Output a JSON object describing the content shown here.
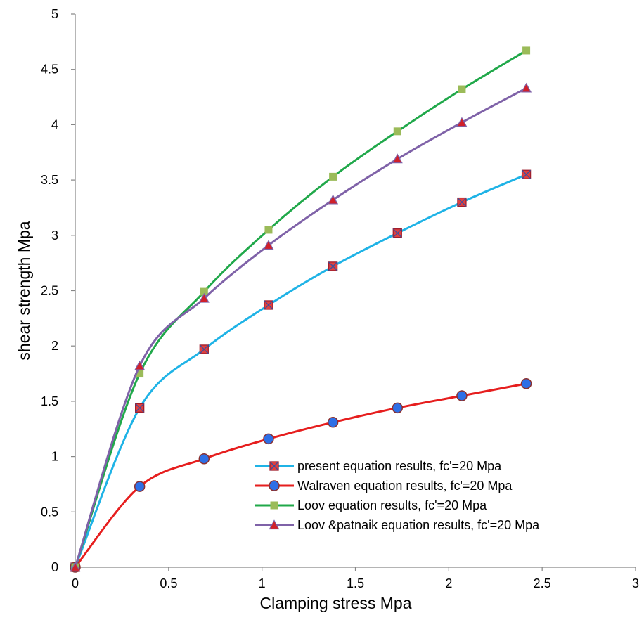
{
  "chart_data": {
    "type": "line",
    "xlabel": "Clamping stress   Mpa",
    "ylabel": "shear strength   Mpa",
    "xlim": [
      0,
      3
    ],
    "ylim": [
      0,
      5
    ],
    "x_ticks": [
      "0",
      "0.5",
      "1",
      "1.5",
      "2",
      "2.5",
      "3"
    ],
    "y_ticks": [
      "0",
      "0.5",
      "1",
      "1.5",
      "2",
      "2.5",
      "3",
      "3.5",
      "4",
      "4.5",
      "5"
    ],
    "grid": false,
    "legend_position": "bottom-right",
    "x": [
      0,
      0.345,
      0.69,
      1.035,
      1.38,
      1.725,
      2.07,
      2.415
    ],
    "series": [
      {
        "name": "present equation results, fc'=20 Mpa",
        "line_color": "#1FB3E6",
        "marker": "square-x",
        "marker_fill": "#E0403E",
        "marker_edge": "#A11F2D",
        "values": [
          0,
          1.44,
          1.97,
          2.37,
          2.72,
          3.02,
          3.3,
          3.55
        ]
      },
      {
        "name": "Walraven equation results, fc'=20 Mpa",
        "line_color": "#E61E1E",
        "marker": "circle",
        "marker_fill": "#2E6FE6",
        "marker_edge": "#8A3030",
        "values": [
          0,
          0.73,
          0.98,
          1.16,
          1.31,
          1.44,
          1.55,
          1.66
        ]
      },
      {
        "name": "Loov equation results, fc'=20 Mpa",
        "line_color": "#20A84A",
        "marker": "square",
        "marker_fill": "#9BBB59",
        "marker_edge": "#9BBB59",
        "values": [
          0,
          1.75,
          2.49,
          3.05,
          3.53,
          3.94,
          4.32,
          4.67
        ]
      },
      {
        "name": "Loov &patnaik equation results, fc'=20 Mpa",
        "line_color": "#7F62A8",
        "marker": "triangle",
        "marker_fill": "#D0202A",
        "marker_edge": "#7F62A8",
        "values": [
          0,
          1.82,
          2.43,
          2.91,
          3.32,
          3.69,
          4.02,
          4.33
        ]
      }
    ]
  }
}
